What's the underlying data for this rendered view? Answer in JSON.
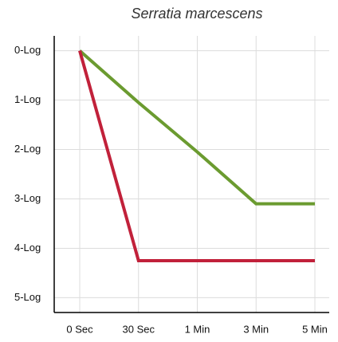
{
  "chart_data": {
    "type": "line",
    "title": "Serratia marcescens",
    "categories": [
      "0 Sec",
      "30 Sec",
      "1 Min",
      "3 Min",
      "5 Min"
    ],
    "series": [
      {
        "color": "#6b9b30",
        "values": [
          0,
          1.05,
          2.05,
          3.1,
          3.1
        ]
      },
      {
        "color": "#c1213a",
        "values": [
          0,
          4.25,
          4.25,
          4.25,
          4.25
        ]
      }
    ],
    "ylim": [
      5.3,
      -0.3
    ],
    "yticks": [
      {
        "value": 0,
        "label": "0-Log"
      },
      {
        "value": 1,
        "label": "1-Log"
      },
      {
        "value": 2,
        "label": "2-Log"
      },
      {
        "value": 3,
        "label": "3-Log"
      },
      {
        "value": 4,
        "label": "4-Log"
      },
      {
        "value": 5,
        "label": "5-Log"
      }
    ],
    "grid": true
  }
}
